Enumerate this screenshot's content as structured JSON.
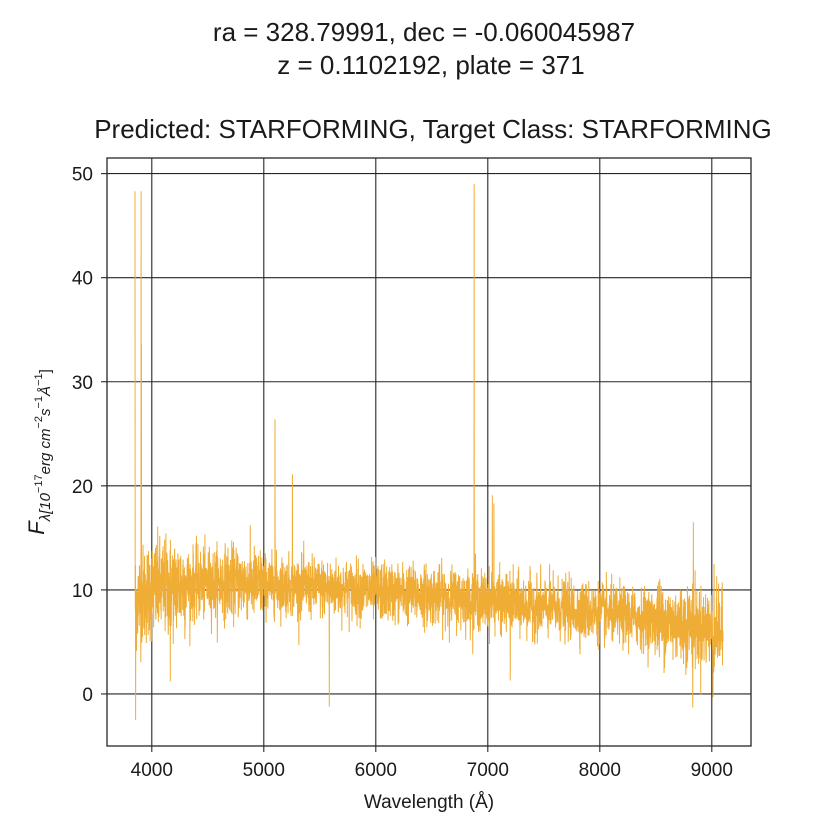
{
  "chart_data": {
    "type": "line",
    "title_lines": [
      "ra = 328.79991, dec = -0.060045987",
      "z = 0.1102192, plate = 371",
      "Predicted: STARFORMING, Target Class: STARFORMING"
    ],
    "xlabel": "Wavelength (Å)",
    "ylabel": "F_λ [10^-17 erg cm^-2 s^-1 Å^-1]",
    "ylabel_parts": {
      "main": "F",
      "sub": "λ[10",
      "exp1": "−17",
      "mid": "erg cm",
      "exp2": "−2",
      "s": "s",
      "exp3": "−1",
      "a": "Å",
      "exp4": "−1",
      "close": "]"
    },
    "xlim": [
      3600,
      9350
    ],
    "ylim": [
      -5,
      51.5
    ],
    "xticks": [
      4000,
      5000,
      6000,
      7000,
      8000,
      9000
    ],
    "yticks": [
      0,
      10,
      20,
      30,
      40,
      50
    ],
    "grid": true,
    "line_color": "#f0ad36",
    "series": [
      {
        "x_start": 3850,
        "x_end": 9100,
        "continuum": [
          [
            3850,
            9.0
          ],
          [
            4000,
            10.0
          ],
          [
            4300,
            10.5
          ],
          [
            4700,
            10.8
          ],
          [
            5200,
            10.4
          ],
          [
            5800,
            10.0
          ],
          [
            6500,
            9.5
          ],
          [
            7200,
            8.7
          ],
          [
            8000,
            7.8
          ],
          [
            8700,
            6.8
          ],
          [
            9100,
            6.0
          ]
        ],
        "emission_lines": [
          {
            "x": 3727,
            "y": 48.3
          },
          {
            "x": 3905,
            "y": 48.3
          },
          {
            "x": 3908,
            "y": 33.6
          },
          {
            "x": 5100,
            "y": 26.4
          },
          {
            "x": 5255,
            "y": 21.1
          },
          {
            "x": 5585,
            "y": 15.8
          },
          {
            "x": 6878,
            "y": 49.0
          },
          {
            "x": 6890,
            "y": 13.5
          },
          {
            "x": 7040,
            "y": 19.1
          },
          {
            "x": 7055,
            "y": 18.3
          },
          {
            "x": 8835,
            "y": 16.5
          },
          {
            "x": 9020,
            "y": 12.5
          }
        ],
        "absorption_dips": [
          {
            "x": 3855,
            "y": -2.5
          },
          {
            "x": 4165,
            "y": 1.2
          },
          {
            "x": 5585,
            "y": -1.2
          },
          {
            "x": 7200,
            "y": 1.3
          },
          {
            "x": 8830,
            "y": -1.3
          },
          {
            "x": 9010,
            "y": -0.3
          }
        ]
      }
    ]
  }
}
